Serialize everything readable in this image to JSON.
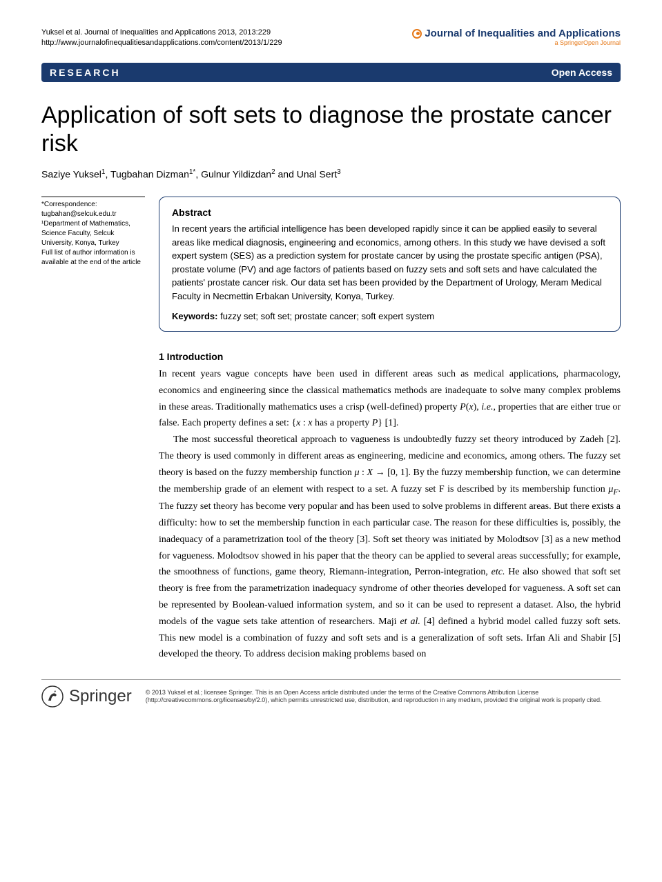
{
  "header": {
    "citation_line1": "Yuksel et al. Journal of Inequalities and Applications 2013, 2013:229",
    "citation_line2": "http://www.journalofinequalitiesandapplications.com/content/2013/1/229",
    "journal_name": "Journal of Inequalities and Applications",
    "springer_open": "a SpringerOpen Journal"
  },
  "banner": {
    "left": "RESEARCH",
    "right": "Open Access"
  },
  "title": "Application of soft sets to diagnose the prostate cancer risk",
  "authors_html": "Saziye Yuksel<sup>1</sup>, Tugbahan Dizman<sup>1*</sup>, Gulnur Yildizdan<sup>2</sup> and Unal Sert<sup>3</sup>",
  "sidebar": {
    "line1": "*Correspondence:",
    "line2": "tugbahan@selcuk.edu.tr",
    "line3": "¹Department of Mathematics, Science Faculty, Selcuk University, Konya, Turkey",
    "line4": "Full list of author information is available at the end of the article"
  },
  "abstract": {
    "heading": "Abstract",
    "text": "In recent years the artificial intelligence has been developed rapidly since it can be applied easily to several areas like medical diagnosis, engineering and economics, among others. In this study we have devised a soft expert system (SES) as a prediction system for prostate cancer by using the prostate specific antigen (PSA), prostate volume (PV) and age factors of patients based on fuzzy sets and soft sets and have calculated the patients' prostate cancer risk. Our data set has been provided by the Department of Urology, Meram Medical Faculty in Necmettin Erbakan University, Konya, Turkey.",
    "keywords_label": "Keywords:",
    "keywords_text": " fuzzy set; soft set; prostate cancer; soft expert system"
  },
  "section": {
    "heading": "1 Introduction",
    "para1_html": "In recent years vague concepts have been used in different areas such as medical applications, pharmacology, economics and engineering since the classical mathematics methods are inadequate to solve many complex problems in these areas. Traditionally mathematics uses a crisp (well-defined) property <em>P</em>(<em>x</em>), <em>i.e.</em>, properties that are either true or false. Each property defines a set: {<em>x</em> : <em>x</em> has a property <em>P</em>} [1].",
    "para2_html": "The most successful theoretical approach to vagueness is undoubtedly fuzzy set theory introduced by Zadeh [2]. The theory is used commonly in different areas as engineering, medicine and economics, among others. The fuzzy set theory is based on the fuzzy membership function <em>μ</em> : <em>X</em> → [0, 1]. By the fuzzy membership function, we can determine the membership grade of an element with respect to a set. A fuzzy set F is described by its membership function <em>μ<sub>F</sub></em>. The fuzzy set theory has become very popular and has been used to solve problems in different areas. But there exists a difficulty: how to set the membership function in each particular case. The reason for these difficulties is, possibly, the inadequacy of a parametrization tool of the theory [3]. Soft set theory was initiated by Molodtsov [3] as a new method for vagueness. Molodtsov showed in his paper that the theory can be applied to several areas successfully; for example, the smoothness of functions, game theory, Riemann-integration, Perron-integration, <em>etc.</em> He also showed that soft set theory is free from the parametrization inadequacy syndrome of other theories developed for vagueness. A soft set can be represented by Boolean-valued information system, and so it can be used to represent a dataset. Also, the hybrid models of the vague sets take attention of researchers. Maji <em>et al.</em> [4] defined a hybrid model called fuzzy soft sets. This new model is a combination of fuzzy and soft sets and is a generalization of soft sets. Irfan Ali and Shabir [5] developed the theory. To address decision making problems based on"
  },
  "footer": {
    "publisher": "Springer",
    "copyright": "© 2013 Yuksel et al.; licensee Springer. This is an Open Access article distributed under the terms of the Creative Commons Attribution License (http://creativecommons.org/licenses/by/2.0), which permits unrestricted use, distribution, and reproduction in any medium, provided the original work is properly cited."
  },
  "colors": {
    "banner_bg": "#1a3a6e",
    "accent_orange": "#e67817"
  }
}
